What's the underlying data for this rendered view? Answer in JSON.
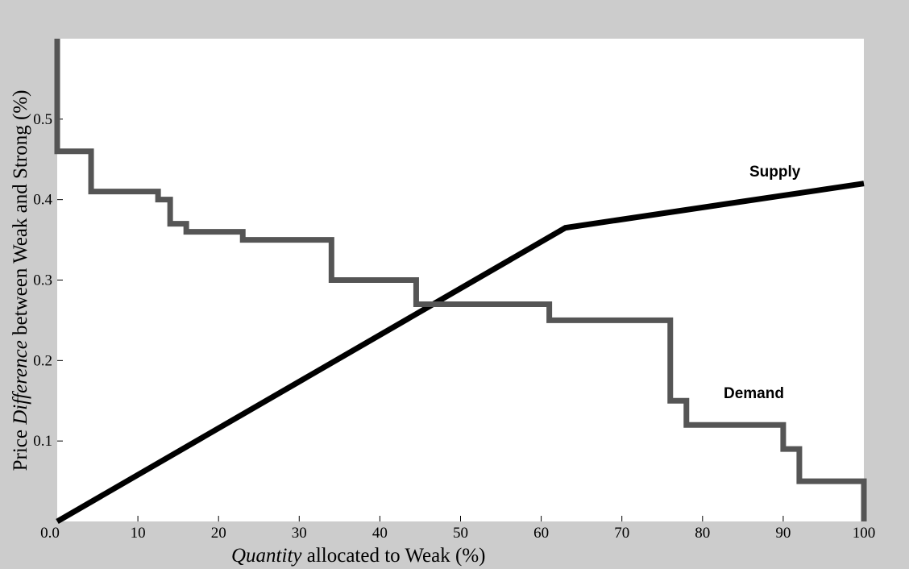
{
  "chart_data": {
    "type": "line",
    "xlabel_italic": "Quantity",
    "xlabel_rest": " allocated to Weak (%)",
    "ylabel_pre": "Price ",
    "ylabel_italic": "Difference",
    "ylabel_post": " between Weak and Strong (%)",
    "xlim": [
      0,
      100
    ],
    "ylim": [
      0,
      0.6
    ],
    "x_ticks": [
      10,
      20,
      30,
      40,
      50,
      60,
      70,
      80,
      90,
      100
    ],
    "y_ticks": [
      0.1,
      0.2,
      0.3,
      0.4,
      0.5
    ],
    "origin_label": "0.0",
    "x_tick_labels": [
      "10",
      "20",
      "30",
      "40",
      "50",
      "60",
      "70",
      "80",
      "90",
      "100"
    ],
    "y_tick_labels": [
      "0.1",
      "0.2",
      "0.3",
      "0.4",
      "0.5"
    ],
    "series": [
      {
        "name": "Supply",
        "color": "#000000",
        "x": [
          0,
          63,
          100
        ],
        "y": [
          0,
          0.365,
          0.42
        ]
      },
      {
        "name": "Demand",
        "color": "#555555",
        "x": [
          0,
          0,
          4.2,
          4.2,
          12.5,
          12.5,
          14,
          14,
          16,
          16,
          23,
          23,
          24,
          24,
          34,
          34,
          44.5,
          44.5,
          61,
          61,
          76,
          76,
          78,
          78,
          90,
          90,
          92,
          92,
          100,
          100
        ],
        "y": [
          0.6,
          0.46,
          0.46,
          0.41,
          0.41,
          0.4,
          0.4,
          0.37,
          0.37,
          0.36,
          0.36,
          0.35,
          0.35,
          0.35,
          0.35,
          0.3,
          0.3,
          0.27,
          0.27,
          0.25,
          0.25,
          0.15,
          0.15,
          0.12,
          0.12,
          0.09,
          0.09,
          0.05,
          0.05,
          0.0
        ]
      }
    ]
  }
}
